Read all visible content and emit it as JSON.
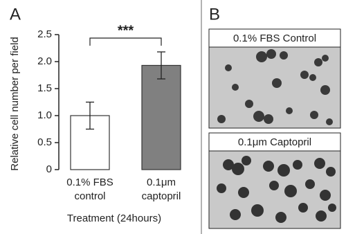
{
  "chart_data": {
    "type": "bar",
    "panel_labels": [
      "A",
      "B"
    ],
    "ylabel": "Relative cell number per field",
    "xlabel": "Treatment (24hours)",
    "categories": [
      [
        "0.1% FBS",
        "control"
      ],
      [
        "0.1μm",
        "captopril"
      ]
    ],
    "values": [
      1.0,
      1.93
    ],
    "errors": [
      0.25,
      0.25
    ],
    "colors": [
      "#ffffff",
      "#808080"
    ],
    "ylim": [
      0,
      2.5
    ],
    "yticks": [
      0,
      0.5,
      {
        "value": 1,
        "label": "1.0"
      },
      1.5,
      {
        "value": 2,
        "label": "2.0"
      },
      2.5
    ],
    "significance": "***",
    "image_titles": [
      "0.1% FBS Control",
      "0.1μm Captopril"
    ]
  }
}
